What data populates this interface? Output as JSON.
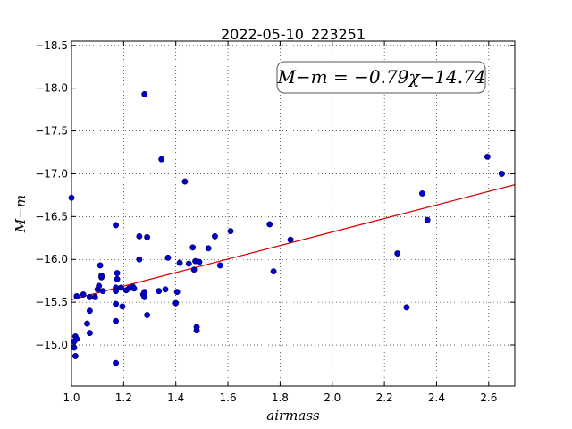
{
  "chart_data": {
    "type": "scatter",
    "title": "2022-05-10_223251",
    "xlabel": "airmass",
    "ylabel": "M−m",
    "xlim": [
      1.0,
      2.7
    ],
    "ylim": [
      -18.55,
      -14.52
    ],
    "y_inverted": true,
    "grid": true,
    "grid_style": "dotted",
    "xticks": [
      1.0,
      1.2,
      1.4,
      1.6,
      1.8,
      2.0,
      2.2,
      2.4,
      2.6
    ],
    "xtick_labels": [
      "1.0",
      "1.2",
      "1.4",
      "1.6",
      "1.8",
      "2.0",
      "2.2",
      "2.4",
      "2.6"
    ],
    "yticks": [
      -15.0,
      -15.5,
      -16.0,
      -16.5,
      -17.0,
      -17.5,
      -18.0,
      -18.5
    ],
    "ytick_labels": [
      "−15.0",
      "−15.5",
      "−16.0",
      "−16.5",
      "−17.0",
      "−17.5",
      "−18.0",
      "−18.5"
    ],
    "annotation": "M−m = −0.79χ−14.74",
    "fit": {
      "slope": -0.79,
      "intercept": -14.74,
      "color": "#dd0000"
    },
    "point_color": "#0000cc",
    "points": [
      [
        1.0,
        -16.72
      ],
      [
        1.01,
        -14.97
      ],
      [
        1.01,
        -15.04
      ],
      [
        1.015,
        -14.87
      ],
      [
        1.015,
        -15.1
      ],
      [
        1.02,
        -15.07
      ],
      [
        1.02,
        -15.57
      ],
      [
        1.045,
        -15.59
      ],
      [
        1.06,
        -15.25
      ],
      [
        1.07,
        -15.4
      ],
      [
        1.07,
        -15.14
      ],
      [
        1.07,
        -15.56
      ],
      [
        1.09,
        -15.56
      ],
      [
        1.1,
        -15.65
      ],
      [
        1.105,
        -15.69
      ],
      [
        1.11,
        -15.93
      ],
      [
        1.115,
        -15.79
      ],
      [
        1.115,
        -15.81
      ],
      [
        1.12,
        -15.63
      ],
      [
        1.17,
        -14.79
      ],
      [
        1.17,
        -15.28
      ],
      [
        1.17,
        -15.48
      ],
      [
        1.17,
        -15.67
      ],
      [
        1.17,
        -15.63
      ],
      [
        1.175,
        -15.77
      ],
      [
        1.175,
        -15.84
      ],
      [
        1.17,
        -16.4
      ],
      [
        1.19,
        -15.67
      ],
      [
        1.195,
        -15.45
      ],
      [
        1.21,
        -15.64
      ],
      [
        1.22,
        -15.66
      ],
      [
        1.235,
        -15.68
      ],
      [
        1.24,
        -15.66
      ],
      [
        1.26,
        -16.0
      ],
      [
        1.26,
        -16.27
      ],
      [
        1.275,
        -15.59
      ],
      [
        1.28,
        -15.62
      ],
      [
        1.28,
        -15.56
      ],
      [
        1.29,
        -15.35
      ],
      [
        1.29,
        -16.26
      ],
      [
        1.28,
        -17.93
      ],
      [
        1.335,
        -15.63
      ],
      [
        1.345,
        -17.17
      ],
      [
        1.36,
        -15.65
      ],
      [
        1.37,
        -16.02
      ],
      [
        1.4,
        -15.49
      ],
      [
        1.405,
        -15.62
      ],
      [
        1.415,
        -15.96
      ],
      [
        1.435,
        -16.91
      ],
      [
        1.45,
        -15.95
      ],
      [
        1.465,
        -16.14
      ],
      [
        1.47,
        -15.88
      ],
      [
        1.475,
        -15.98
      ],
      [
        1.48,
        -15.17
      ],
      [
        1.48,
        -15.21
      ],
      [
        1.49,
        -15.97
      ],
      [
        1.525,
        -16.13
      ],
      [
        1.55,
        -16.27
      ],
      [
        1.57,
        -15.93
      ],
      [
        1.61,
        -16.33
      ],
      [
        1.76,
        -16.41
      ],
      [
        1.775,
        -15.86
      ],
      [
        1.84,
        -16.23
      ],
      [
        2.25,
        -16.07
      ],
      [
        2.285,
        -15.44
      ],
      [
        2.345,
        -16.77
      ],
      [
        2.365,
        -16.46
      ],
      [
        2.595,
        -17.2
      ],
      [
        2.65,
        -17.0
      ]
    ]
  }
}
